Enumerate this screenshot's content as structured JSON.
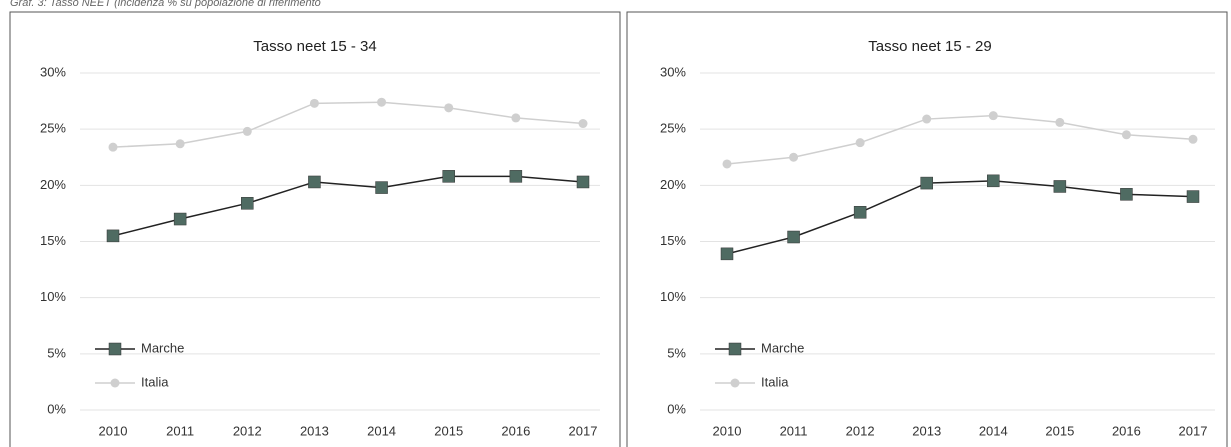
{
  "caption": "Graf. 3: Tasso NEET (incidenza % su popolazione di riferimento",
  "chart_data": [
    {
      "type": "line",
      "title": "Tasso neet 15 - 34",
      "categories": [
        "2010",
        "2011",
        "2012",
        "2013",
        "2014",
        "2015",
        "2016",
        "2017"
      ],
      "series": [
        {
          "name": "Marche",
          "color": "#4f6b62",
          "marker": "square",
          "values": [
            15.5,
            17.0,
            18.4,
            20.3,
            19.8,
            20.8,
            20.8,
            20.3
          ]
        },
        {
          "name": "Italia",
          "color": "#cfcfcf",
          "marker": "circle",
          "values": [
            23.4,
            23.7,
            24.8,
            27.3,
            27.4,
            26.9,
            26.0,
            25.5
          ]
        }
      ],
      "ylim": [
        0,
        30
      ],
      "yticks": [
        {
          "value": 0,
          "label": "0%"
        },
        {
          "value": 5,
          "label": "5%"
        },
        {
          "value": 10,
          "label": "10%"
        },
        {
          "value": 15,
          "label": "15%"
        },
        {
          "value": 20,
          "label": "20%"
        },
        {
          "value": 25,
          "label": "25%"
        },
        {
          "value": 30,
          "label": "30%"
        }
      ],
      "grid": true,
      "legend": "lower left"
    },
    {
      "type": "line",
      "title": "Tasso neet 15 - 29",
      "categories": [
        "2010",
        "2011",
        "2012",
        "2013",
        "2014",
        "2015",
        "2016",
        "2017"
      ],
      "series": [
        {
          "name": "Marche",
          "color": "#4f6b62",
          "marker": "square",
          "values": [
            13.9,
            15.4,
            17.6,
            20.2,
            20.4,
            19.9,
            19.2,
            19.0
          ]
        },
        {
          "name": "Italia",
          "color": "#cfcfcf",
          "marker": "circle",
          "values": [
            21.9,
            22.5,
            23.8,
            25.9,
            26.2,
            25.6,
            24.5,
            24.1
          ]
        }
      ],
      "ylim": [
        0,
        30
      ],
      "yticks": [
        {
          "value": 0,
          "label": "0%"
        },
        {
          "value": 5,
          "label": "5%"
        },
        {
          "value": 10,
          "label": "10%"
        },
        {
          "value": 15,
          "label": "15%"
        },
        {
          "value": 20,
          "label": "20%"
        },
        {
          "value": 25,
          "label": "25%"
        },
        {
          "value": 30,
          "label": "30%"
        }
      ],
      "grid": true,
      "legend": "lower left"
    }
  ]
}
